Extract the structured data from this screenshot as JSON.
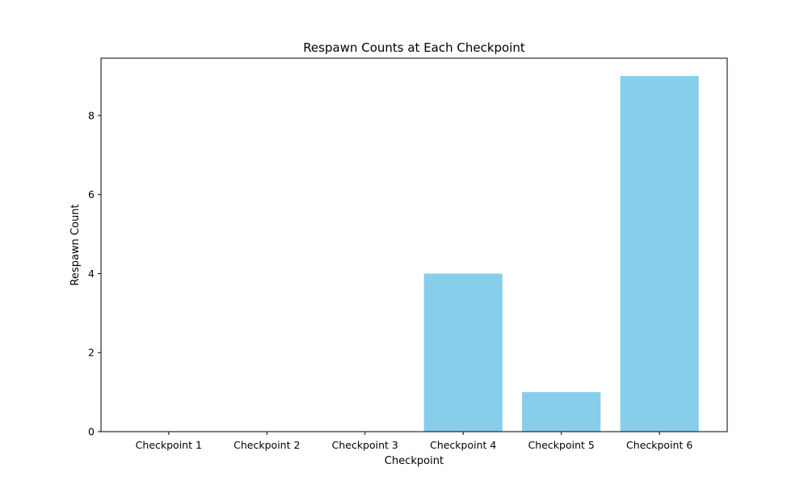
{
  "chart_data": {
    "type": "bar",
    "title": "Respawn Counts at Each Checkpoint",
    "xlabel": "Checkpoint",
    "ylabel": "Respawn Count",
    "categories": [
      "Checkpoint 1",
      "Checkpoint 2",
      "Checkpoint 3",
      "Checkpoint 4",
      "Checkpoint 5",
      "Checkpoint 6"
    ],
    "values": [
      0,
      0,
      0,
      4,
      1,
      9
    ],
    "ylim": [
      0,
      9.45
    ],
    "yticks": [
      "0",
      "2",
      "4",
      "6",
      "8"
    ],
    "bar_color": "#87CEEB",
    "grid": false,
    "legend": "none"
  }
}
